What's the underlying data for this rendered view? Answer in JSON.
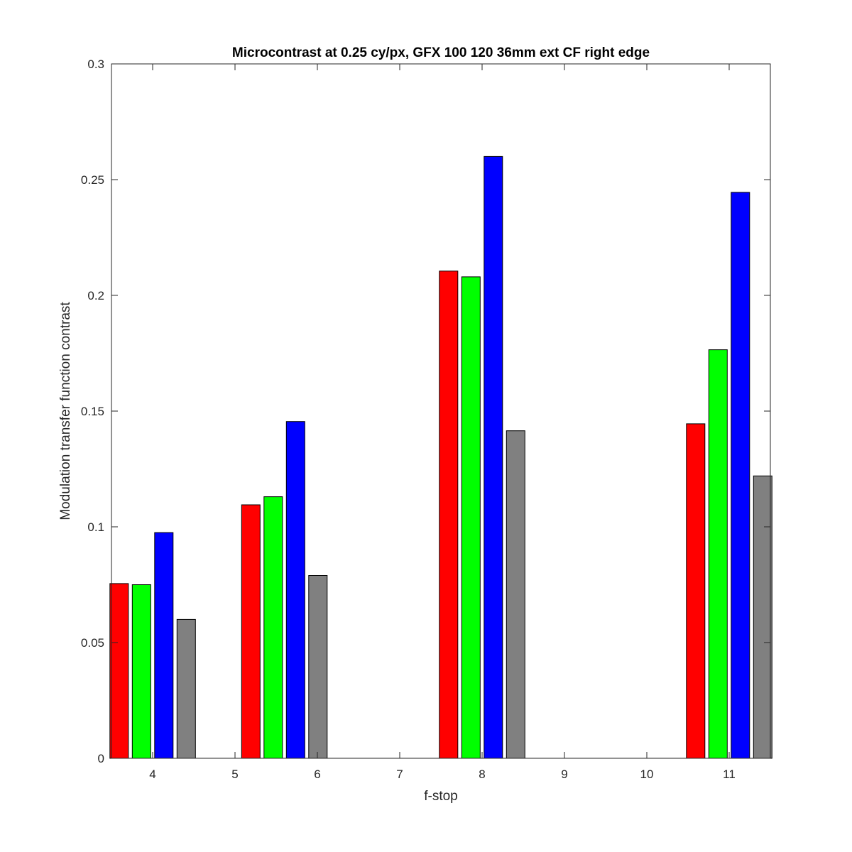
{
  "chart_data": {
    "type": "bar",
    "title": "Microcontrast at 0.25 cy/px, GFX 100 120 36mm ext CF right edge",
    "xlabel": "f-stop",
    "ylabel": "Modulation transfer function contrast",
    "xlim": [
      3.5,
      11.5
    ],
    "ylim": [
      0,
      0.3
    ],
    "x_ticks": [
      "4",
      "5",
      "6",
      "7",
      "8",
      "9",
      "10",
      "11"
    ],
    "y_ticks": [
      "0",
      "0.05",
      "0.1",
      "0.15",
      "0.2",
      "0.25",
      "0.3"
    ],
    "grid": false,
    "box": true,
    "groups": [
      {
        "center": 4.0,
        "values": [
          0.0755,
          0.075,
          0.0975,
          0.06
        ]
      },
      {
        "center": 5.6,
        "values": [
          0.1095,
          0.113,
          0.1455,
          0.079
        ]
      },
      {
        "center": 8.0,
        "values": [
          0.2105,
          0.208,
          0.26,
          0.1415
        ]
      },
      {
        "center": 11.0,
        "values": [
          0.1445,
          0.1765,
          0.2445,
          0.122
        ]
      }
    ],
    "series_colors": [
      "#ff0000",
      "#00ff00",
      "#0000ff",
      "#808080"
    ]
  }
}
